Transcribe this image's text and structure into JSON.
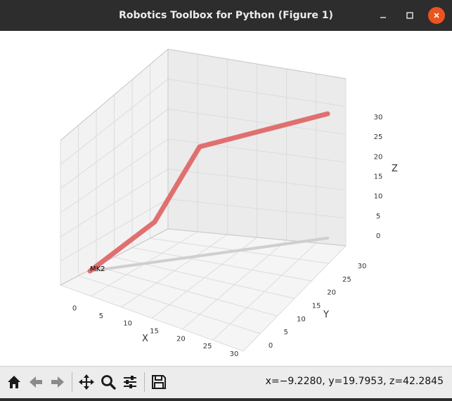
{
  "window": {
    "title": "Robotics Toolbox for Python (Figure 1)",
    "minimize_icon": "minimize-icon",
    "maximize_icon": "maximize-icon",
    "close_icon": "close-icon",
    "close_color": "#e95420"
  },
  "plot": {
    "robot_label": "MK2",
    "axes": {
      "x": {
        "label": "X",
        "ticks": [
          "0",
          "5",
          "10",
          "15",
          "20",
          "25",
          "30"
        ]
      },
      "y": {
        "label": "Y",
        "ticks": [
          "0",
          "5",
          "10",
          "15",
          "20",
          "25",
          "30"
        ]
      },
      "z": {
        "label": "Z",
        "ticks": [
          "0",
          "5",
          "10",
          "15",
          "20",
          "25",
          "30"
        ]
      }
    },
    "robot_color": "#e07070",
    "shadow_color": "#cfcfcf"
  },
  "toolbar": {
    "icons": [
      "home-icon",
      "back-icon",
      "forward-icon",
      "pan-icon",
      "zoom-icon",
      "configure-subplots-icon",
      "save-icon"
    ],
    "coords": "x=−9.2280, y=19.7953, z=42.2845"
  }
}
